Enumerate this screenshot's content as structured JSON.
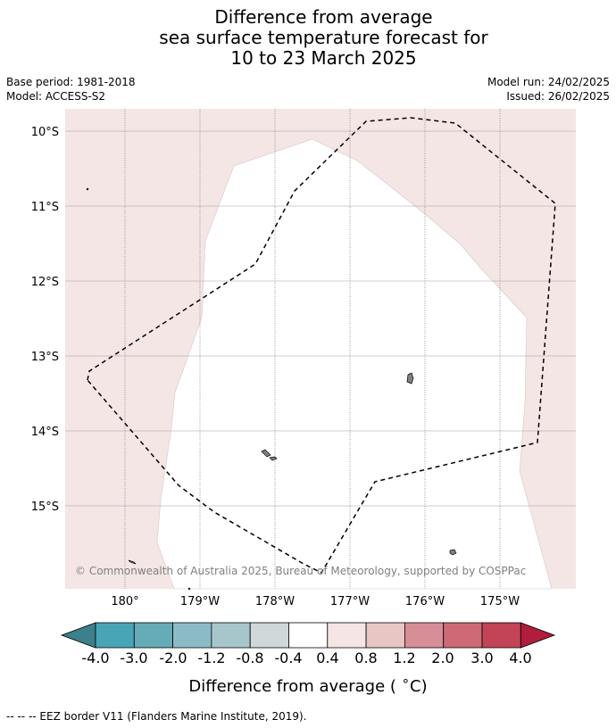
{
  "title": {
    "line1": "Difference from average",
    "line2": "sea surface temperature forecast for",
    "line3": "10 to 23 March 2025"
  },
  "meta": {
    "base_period": "Base period: 1981-2018",
    "model": "Model: ACCESS-S2",
    "model_run": "Model run: 24/02/2025",
    "issued": "Issued: 26/02/2025"
  },
  "map": {
    "lat_labels": [
      "10°S",
      "11°S",
      "12°S",
      "13°S",
      "14°S",
      "15°S"
    ],
    "lon_labels": [
      "180°",
      "179°W",
      "178°W",
      "177°W",
      "176°W",
      "175°W"
    ],
    "copyright": "© Commonwealth of Australia 2025, Bureau of Meteorology, supported by COSPPac",
    "anomaly_fill_color": "#f4e6e5",
    "neutral_fill_color": "#ffffff"
  },
  "colorbar": {
    "ticks": [
      "-4.0",
      "-3.0",
      "-2.0",
      "-1.2",
      "-0.8",
      "-0.4",
      "0.4",
      "0.8",
      "1.2",
      "2.0",
      "3.0",
      "4.0"
    ],
    "colors": [
      "#3d7f8a",
      "#48a5b6",
      "#66abb8",
      "#8bbcc6",
      "#a7c6cb",
      "#cfd7d8",
      "#ffffff",
      "#f5e6e5",
      "#e8c6c4",
      "#d78e96",
      "#cd6a76",
      "#c24456",
      "#b11d3c"
    ],
    "label": "Difference from average ( $^{\\circ}$C)",
    "label_text": "Difference from average (",
    "label_unit": "C)"
  },
  "footer": "--  --  -- EEZ border V11 (Flanders Marine Institute, 2019)."
}
